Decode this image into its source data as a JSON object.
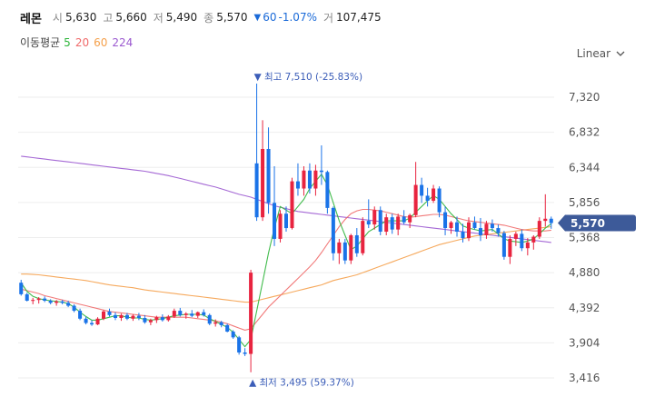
{
  "header": {
    "name": "레몬",
    "open_label": "시",
    "open": "5,630",
    "high_label": "고",
    "high": "5,660",
    "low_label": "저",
    "low": "5,490",
    "close_label": "종",
    "close": "5,570",
    "change": "60",
    "change_pct": "-1.07%",
    "volume_label": "거",
    "volume": "107,475"
  },
  "ma_legend": {
    "title": "이동평균",
    "periods": [
      {
        "label": "5",
        "color": "#2db53a"
      },
      {
        "label": "20",
        "color": "#f06a6a"
      },
      {
        "label": "60",
        "color": "#f5a04b"
      },
      {
        "label": "224",
        "color": "#9b59d0"
      }
    ]
  },
  "scale_toggle": {
    "label": "Linear"
  },
  "colors": {
    "up": "#e8243f",
    "down": "#1a73e8",
    "grid": "#eeeeee",
    "price_tag": "#3d5a99"
  },
  "chart_data": {
    "type": "candlestick",
    "y_ticks": [
      "7,320",
      "6,832",
      "6,344",
      "5,856",
      "5,368",
      "4,880",
      "4,392",
      "3,904",
      "3,416"
    ],
    "y_tick_values": [
      7320,
      6832,
      6344,
      5856,
      5368,
      4880,
      4392,
      3904,
      3416
    ],
    "ylim": [
      3340,
      7700
    ],
    "current_price": 5570,
    "current_price_label": "5,570",
    "high_annotation": "▼ 최고 7,510 (-25.83%)",
    "high_value": 7510,
    "high_index": 40,
    "low_annotation": "▲ 최저 3,495 (59.37%)",
    "low_value": 3495,
    "low_index": 39,
    "candles": [
      [
        4740,
        4780,
        4560,
        4580
      ],
      [
        4580,
        4600,
        4480,
        4490
      ],
      [
        4490,
        4530,
        4440,
        4500
      ],
      [
        4500,
        4540,
        4450,
        4520
      ],
      [
        4520,
        4550,
        4470,
        4490
      ],
      [
        4490,
        4510,
        4440,
        4460
      ],
      [
        4460,
        4500,
        4420,
        4480
      ],
      [
        4480,
        4500,
        4440,
        4460
      ],
      [
        4460,
        4490,
        4400,
        4420
      ],
      [
        4420,
        4440,
        4330,
        4350
      ],
      [
        4350,
        4380,
        4220,
        4240
      ],
      [
        4240,
        4270,
        4160,
        4180
      ],
      [
        4180,
        4220,
        4140,
        4160
      ],
      [
        4160,
        4260,
        4150,
        4240
      ],
      [
        4240,
        4360,
        4220,
        4340
      ],
      [
        4340,
        4380,
        4270,
        4290
      ],
      [
        4290,
        4330,
        4220,
        4250
      ],
      [
        4250,
        4310,
        4210,
        4290
      ],
      [
        4290,
        4320,
        4220,
        4240
      ],
      [
        4240,
        4300,
        4210,
        4280
      ],
      [
        4280,
        4320,
        4220,
        4250
      ],
      [
        4250,
        4290,
        4170,
        4190
      ],
      [
        4190,
        4240,
        4150,
        4220
      ],
      [
        4220,
        4280,
        4180,
        4260
      ],
      [
        4260,
        4300,
        4200,
        4220
      ],
      [
        4220,
        4290,
        4200,
        4270
      ],
      [
        4270,
        4380,
        4250,
        4350
      ],
      [
        4350,
        4390,
        4270,
        4290
      ],
      [
        4290,
        4330,
        4240,
        4310
      ],
      [
        4310,
        4360,
        4260,
        4280
      ],
      [
        4280,
        4340,
        4250,
        4330
      ],
      [
        4330,
        4370,
        4270,
        4290
      ],
      [
        4290,
        4310,
        4150,
        4170
      ],
      [
        4170,
        4230,
        4130,
        4190
      ],
      [
        4190,
        4210,
        4120,
        4150
      ],
      [
        4150,
        4170,
        4050,
        4060
      ],
      [
        4060,
        4080,
        3960,
        3980
      ],
      [
        3980,
        4000,
        3740,
        3770
      ],
      [
        3770,
        3830,
        3720,
        3750
      ],
      [
        3750,
        4920,
        3495,
        4880
      ],
      [
        6400,
        7510,
        5600,
        5650
      ],
      [
        5650,
        7000,
        5600,
        6600
      ],
      [
        6600,
        6900,
        5700,
        5850
      ],
      [
        5850,
        6360,
        5250,
        5350
      ],
      [
        5350,
        5750,
        5300,
        5700
      ],
      [
        5700,
        5800,
        5450,
        5500
      ],
      [
        5500,
        6200,
        5480,
        6150
      ],
      [
        6150,
        6400,
        5950,
        6050
      ],
      [
        6050,
        6360,
        5950,
        6300
      ],
      [
        6300,
        6400,
        5980,
        6050
      ],
      [
        6050,
        6380,
        5950,
        6300
      ],
      [
        6300,
        6650,
        6100,
        6280
      ],
      [
        6280,
        6300,
        5700,
        5780
      ],
      [
        5780,
        5800,
        5050,
        5150
      ],
      [
        5150,
        5350,
        5000,
        5300
      ],
      [
        5300,
        5350,
        5000,
        5050
      ],
      [
        5050,
        5420,
        5000,
        5400
      ],
      [
        5400,
        5500,
        5100,
        5150
      ],
      [
        5150,
        5650,
        5120,
        5600
      ],
      [
        5600,
        5900,
        5500,
        5550
      ],
      [
        5550,
        5800,
        5480,
        5750
      ],
      [
        5750,
        5800,
        5400,
        5450
      ],
      [
        5450,
        5700,
        5400,
        5650
      ],
      [
        5650,
        5700,
        5420,
        5480
      ],
      [
        5480,
        5700,
        5400,
        5660
      ],
      [
        5660,
        5750,
        5550,
        5580
      ],
      [
        5580,
        5700,
        5500,
        5680
      ],
      [
        5680,
        6420,
        5650,
        6100
      ],
      [
        6100,
        6200,
        5850,
        5950
      ],
      [
        5950,
        6060,
        5800,
        5880
      ],
      [
        5880,
        6100,
        5850,
        6050
      ],
      [
        6050,
        6080,
        5650,
        5720
      ],
      [
        5720,
        5800,
        5400,
        5500
      ],
      [
        5500,
        5600,
        5420,
        5580
      ],
      [
        5580,
        5660,
        5380,
        5450
      ],
      [
        5450,
        5560,
        5300,
        5360
      ],
      [
        5360,
        5650,
        5320,
        5580
      ],
      [
        5580,
        5660,
        5480,
        5500
      ],
      [
        5500,
        5640,
        5320,
        5400
      ],
      [
        5400,
        5600,
        5350,
        5560
      ],
      [
        5560,
        5620,
        5450,
        5500
      ],
      [
        5500,
        5550,
        5380,
        5430
      ],
      [
        5430,
        5460,
        5060,
        5100
      ],
      [
        5100,
        5400,
        5000,
        5350
      ],
      [
        5350,
        5450,
        5250,
        5420
      ],
      [
        5420,
        5480,
        5180,
        5220
      ],
      [
        5220,
        5360,
        5120,
        5300
      ],
      [
        5300,
        5400,
        5200,
        5380
      ],
      [
        5380,
        5650,
        5350,
        5600
      ],
      [
        5600,
        5970,
        5520,
        5630
      ],
      [
        5630,
        5660,
        5490,
        5570
      ]
    ],
    "ma5": [
      4740,
      4620,
      4550,
      4520,
      4500,
      4490,
      4480,
      4470,
      4450,
      4400,
      4330,
      4270,
      4220,
      4220,
      4240,
      4260,
      4280,
      4280,
      4260,
      4250,
      4250,
      4230,
      4220,
      4230,
      4240,
      4260,
      4280,
      4290,
      4300,
      4300,
      4300,
      4290,
      4240,
      4200,
      4160,
      4120,
      4050,
      3950,
      3850,
      3950,
      4350,
      4750,
      5150,
      5500,
      5800,
      5750,
      5700,
      5800,
      5900,
      6050,
      6150,
      6250,
      6100,
      5850,
      5600,
      5400,
      5200,
      5250,
      5350,
      5450,
      5500,
      5550,
      5600,
      5600,
      5600,
      5600,
      5640,
      5720,
      5800,
      5880,
      5950,
      5900,
      5800,
      5700,
      5620,
      5530,
      5500,
      5480,
      5460,
      5470,
      5480,
      5420,
      5350,
      5320,
      5310,
      5300,
      5320,
      5350,
      5420,
      5500,
      5560
    ],
    "ma20": [
      4650,
      4630,
      4610,
      4590,
      4560,
      4540,
      4520,
      4500,
      4480,
      4460,
      4440,
      4420,
      4400,
      4380,
      4360,
      4340,
      4330,
      4320,
      4310,
      4300,
      4290,
      4280,
      4270,
      4260,
      4260,
      4260,
      4260,
      4260,
      4260,
      4250,
      4240,
      4230,
      4220,
      4210,
      4190,
      4170,
      4140,
      4110,
      4080,
      4100,
      4200,
      4300,
      4400,
      4480,
      4560,
      4640,
      4720,
      4800,
      4880,
      4960,
      5050,
      5160,
      5280,
      5400,
      5520,
      5620,
      5700,
      5740,
      5760,
      5760,
      5750,
      5740,
      5720,
      5700,
      5680,
      5660,
      5650,
      5660,
      5670,
      5680,
      5690,
      5690,
      5680,
      5660,
      5640,
      5620,
      5600,
      5590,
      5580,
      5570,
      5560,
      5550,
      5540,
      5520,
      5500,
      5480,
      5470,
      5460,
      5460,
      5460,
      5470
    ],
    "ma60": [
      4860,
      4860,
      4855,
      4850,
      4840,
      4830,
      4820,
      4810,
      4800,
      4790,
      4780,
      4770,
      4755,
      4740,
      4725,
      4710,
      4700,
      4690,
      4680,
      4670,
      4655,
      4640,
      4630,
      4620,
      4610,
      4600,
      4590,
      4580,
      4570,
      4560,
      4550,
      4540,
      4530,
      4520,
      4510,
      4500,
      4490,
      4480,
      4470,
      4470,
      4490,
      4510,
      4530,
      4550,
      4570,
      4590,
      4610,
      4630,
      4650,
      4670,
      4690,
      4710,
      4740,
      4770,
      4790,
      4810,
      4830,
      4850,
      4880,
      4910,
      4940,
      4970,
      5000,
      5030,
      5060,
      5090,
      5120,
      5150,
      5180,
      5210,
      5240,
      5270,
      5290,
      5310,
      5330,
      5350,
      5370,
      5390,
      5400,
      5410,
      5420,
      5430,
      5440,
      5450,
      5460,
      5470,
      5480,
      5490,
      5500,
      5510,
      5520
    ],
    "ma224": [
      6500,
      6490,
      6480,
      6470,
      6460,
      6450,
      6440,
      6430,
      6420,
      6410,
      6400,
      6390,
      6380,
      6370,
      6360,
      6350,
      6340,
      6330,
      6320,
      6310,
      6300,
      6290,
      6275,
      6260,
      6245,
      6230,
      6210,
      6190,
      6170,
      6150,
      6130,
      6110,
      6090,
      6070,
      6045,
      6020,
      5995,
      5970,
      5950,
      5930,
      5900,
      5870,
      5840,
      5810,
      5790,
      5770,
      5750,
      5730,
      5720,
      5710,
      5700,
      5690,
      5680,
      5670,
      5660,
      5650,
      5640,
      5630,
      5620,
      5610,
      5600,
      5590,
      5580,
      5570,
      5560,
      5550,
      5540,
      5530,
      5520,
      5510,
      5500,
      5490,
      5480,
      5470,
      5460,
      5450,
      5440,
      5430,
      5420,
      5410,
      5400,
      5390,
      5380,
      5370,
      5360,
      5350,
      5340,
      5330,
      5320,
      5310,
      5300
    ]
  }
}
